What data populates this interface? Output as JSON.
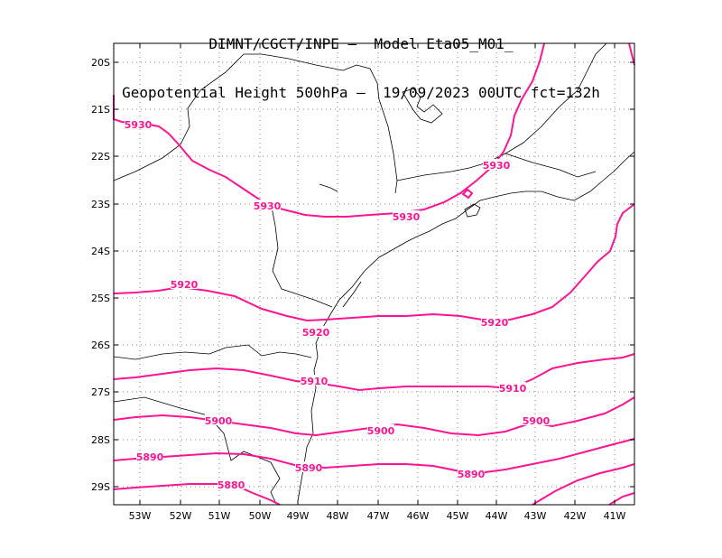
{
  "title": {
    "line1": "DIMNT/CGCT/INPE –  Model Eta05_M01_",
    "line2": "Geopotential Height 500hPa –  19/09/2023 00UTC fct=132h"
  },
  "colors": {
    "contour": "#ff1493",
    "frame": "#000000",
    "grid": "#888888",
    "coast": "#000000"
  },
  "axes": {
    "lon_labels": [
      "53W",
      "52W",
      "51W",
      "50W",
      "49W",
      "48W",
      "47W",
      "46W",
      "45W",
      "44W",
      "43W",
      "42W",
      "41W"
    ],
    "lat_labels": [
      "20S",
      "21S",
      "22S",
      "23S",
      "24S",
      "25S",
      "26S",
      "27S",
      "28S",
      "29S"
    ]
  },
  "contours": [
    {
      "value": 5930,
      "labels": [
        "5930",
        "5930",
        "5930",
        "5930"
      ]
    },
    {
      "value": 5920,
      "labels": [
        "5920",
        "5920",
        "5920"
      ]
    },
    {
      "value": 5910,
      "labels": [
        "5910",
        "5910"
      ]
    },
    {
      "value": 5900,
      "labels": [
        "5900",
        "5900",
        "5900"
      ]
    },
    {
      "value": 5890,
      "labels": [
        "5890",
        "5890",
        "5890"
      ]
    },
    {
      "value": 5880,
      "labels": [
        "5880"
      ]
    }
  ]
}
